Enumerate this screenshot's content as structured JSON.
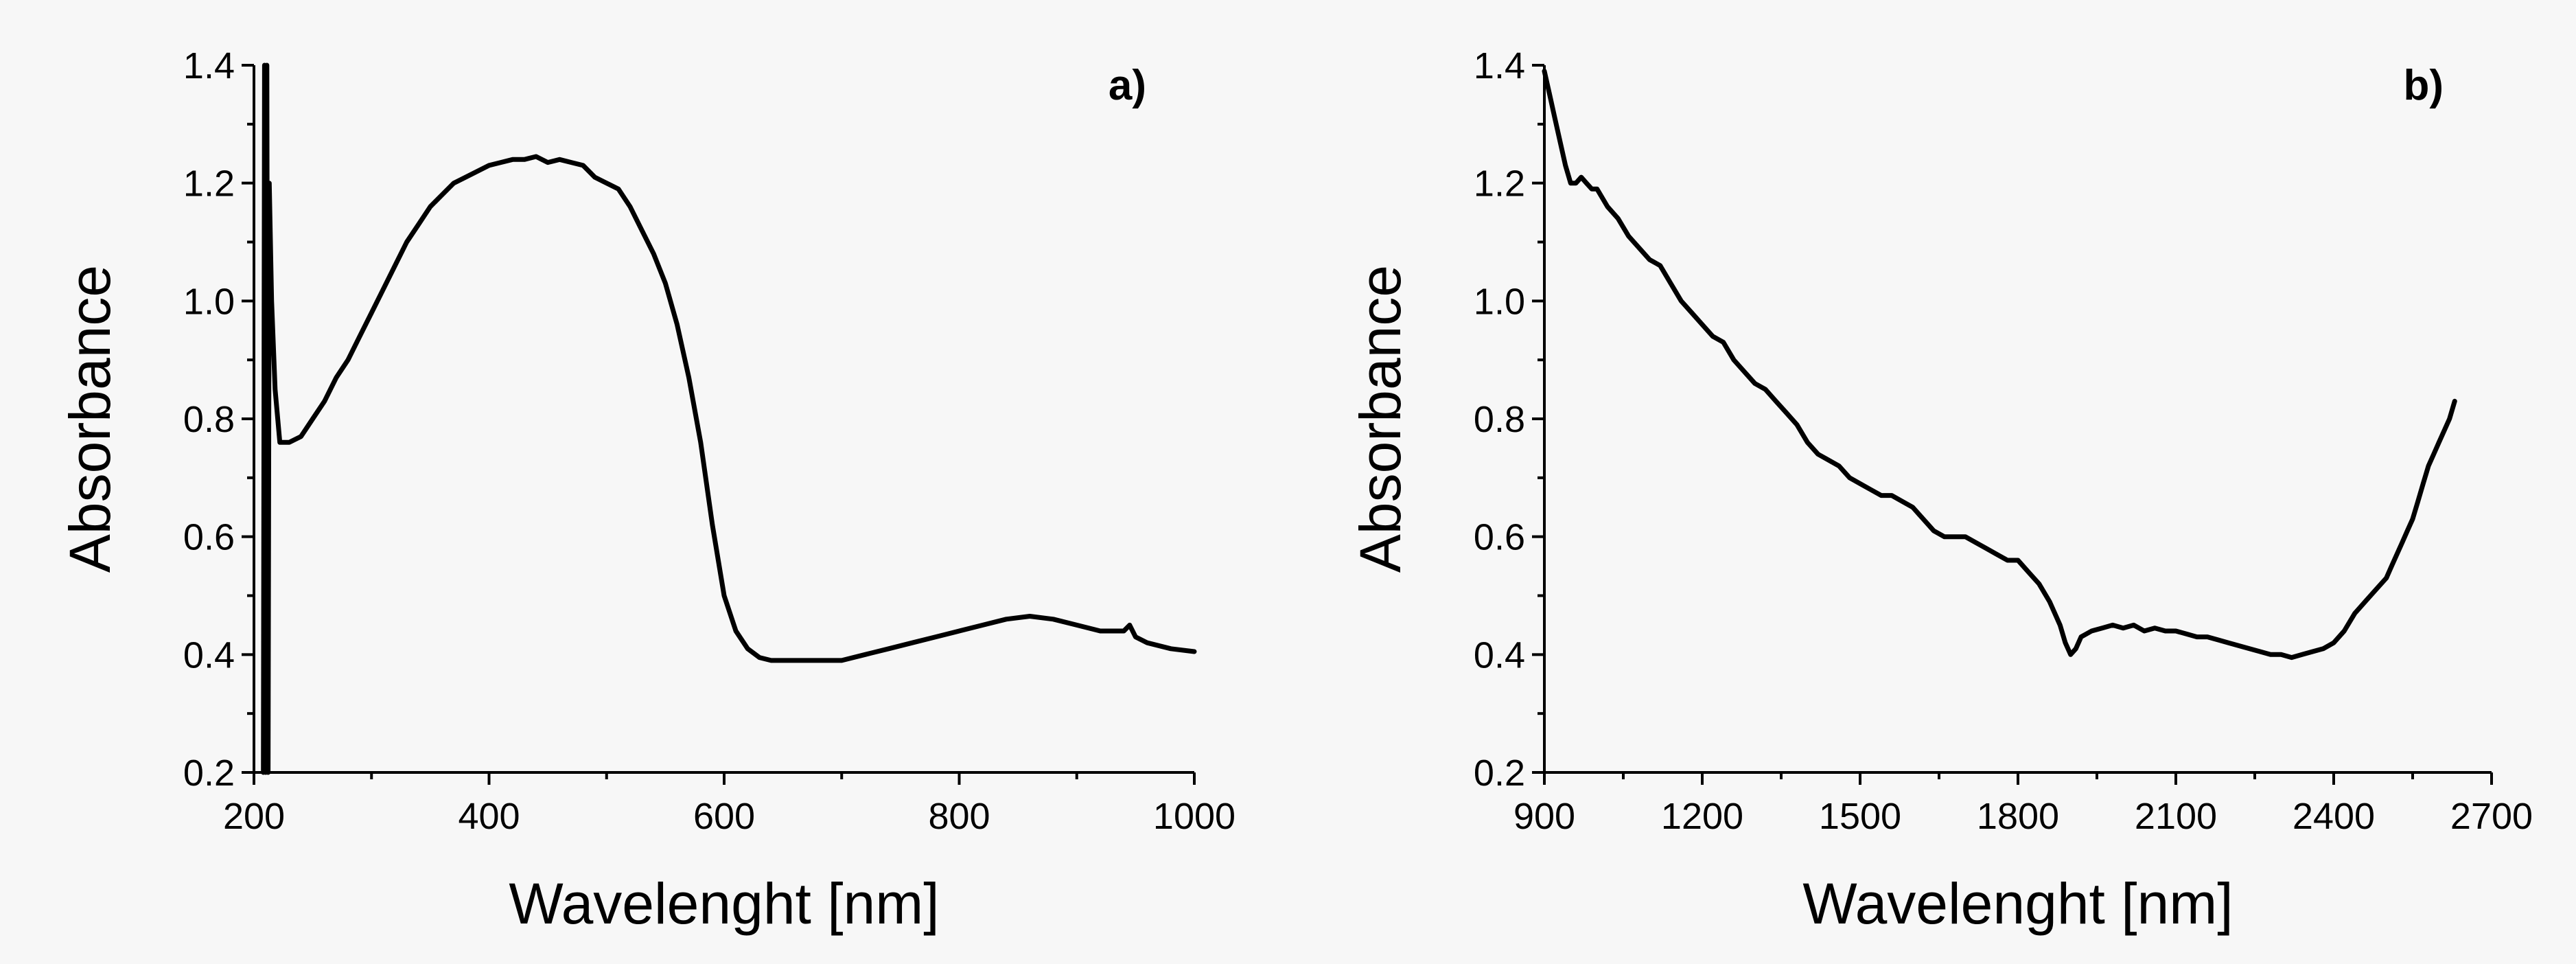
{
  "chart_data": [
    {
      "type": "line",
      "panel_label": "a)",
      "xlabel": "Wavelenght [nm]",
      "ylabel": "Absorbance",
      "xlim": [
        200,
        1000
      ],
      "ylim": [
        0.2,
        1.4
      ],
      "xticks": [
        200,
        400,
        600,
        800,
        1000
      ],
      "xtick_labels": [
        "200",
        "400",
        "600",
        "800",
        "1000"
      ],
      "yticks": [
        0.2,
        0.4,
        0.6,
        0.8,
        1.0,
        1.2,
        1.4
      ],
      "ytick_labels": [
        "0.2",
        "0.4",
        "0.6",
        "0.8",
        "1.0",
        "1.2",
        "1.4"
      ],
      "series": [
        {
          "name": "absorbance",
          "x": [
            208,
            209,
            210,
            211,
            212,
            213,
            215,
            218,
            222,
            230,
            240,
            250,
            260,
            270,
            280,
            290,
            300,
            310,
            320,
            330,
            340,
            350,
            360,
            370,
            380,
            390,
            400,
            410,
            420,
            430,
            440,
            450,
            460,
            470,
            480,
            490,
            500,
            510,
            520,
            530,
            540,
            550,
            560,
            570,
            580,
            590,
            600,
            610,
            620,
            630,
            640,
            650,
            660,
            670,
            680,
            690,
            700,
            720,
            740,
            760,
            780,
            800,
            820,
            840,
            860,
            880,
            900,
            920,
            940,
            945,
            950,
            960,
            980,
            1000
          ],
          "y": [
            0.2,
            1.4,
            0.2,
            1.4,
            0.2,
            1.2,
            1.0,
            0.85,
            0.76,
            0.76,
            0.77,
            0.8,
            0.83,
            0.87,
            0.9,
            0.94,
            0.98,
            1.02,
            1.06,
            1.1,
            1.13,
            1.16,
            1.18,
            1.2,
            1.21,
            1.22,
            1.23,
            1.235,
            1.24,
            1.24,
            1.245,
            1.235,
            1.24,
            1.235,
            1.23,
            1.21,
            1.2,
            1.19,
            1.16,
            1.12,
            1.08,
            1.03,
            0.96,
            0.87,
            0.76,
            0.62,
            0.5,
            0.44,
            0.41,
            0.395,
            0.39,
            0.39,
            0.39,
            0.39,
            0.39,
            0.39,
            0.39,
            0.4,
            0.41,
            0.42,
            0.43,
            0.44,
            0.45,
            0.46,
            0.465,
            0.46,
            0.45,
            0.44,
            0.44,
            0.45,
            0.43,
            0.42,
            0.41,
            0.405
          ]
        }
      ]
    },
    {
      "type": "line",
      "panel_label": "b)",
      "xlabel": "Wavelenght [nm]",
      "ylabel": "Absorbance",
      "xlim": [
        900,
        2700
      ],
      "ylim": [
        0.2,
        1.4
      ],
      "xticks": [
        900,
        1200,
        1500,
        1800,
        2100,
        2400,
        2700
      ],
      "xtick_labels": [
        "900",
        "1200",
        "1500",
        "1800",
        "2100",
        "2400",
        "2700"
      ],
      "yticks": [
        0.2,
        0.4,
        0.6,
        0.8,
        1.0,
        1.2,
        1.4
      ],
      "ytick_labels": [
        "0.2",
        "0.4",
        "0.6",
        "0.8",
        "1.0",
        "1.2",
        "1.4"
      ],
      "series": [
        {
          "name": "absorbance",
          "x": [
            900,
            910,
            920,
            930,
            940,
            950,
            960,
            970,
            980,
            990,
            1000,
            1020,
            1040,
            1060,
            1080,
            1100,
            1120,
            1140,
            1160,
            1180,
            1200,
            1220,
            1240,
            1260,
            1280,
            1300,
            1320,
            1340,
            1360,
            1380,
            1400,
            1420,
            1440,
            1460,
            1480,
            1500,
            1520,
            1540,
            1560,
            1580,
            1600,
            1620,
            1640,
            1660,
            1680,
            1700,
            1720,
            1740,
            1760,
            1780,
            1800,
            1820,
            1840,
            1860,
            1870,
            1880,
            1890,
            1900,
            1910,
            1920,
            1940,
            1960,
            1980,
            2000,
            2020,
            2040,
            2060,
            2080,
            2100,
            2120,
            2140,
            2160,
            2180,
            2200,
            2220,
            2240,
            2260,
            2280,
            2300,
            2320,
            2340,
            2360,
            2380,
            2400,
            2420,
            2440,
            2460,
            2480,
            2500,
            2510,
            2520,
            2530,
            2540,
            2550,
            2560,
            2570,
            2580,
            2590,
            2600,
            2610,
            2620,
            2630
          ],
          "y": [
            1.39,
            1.35,
            1.31,
            1.27,
            1.23,
            1.2,
            1.2,
            1.21,
            1.2,
            1.19,
            1.19,
            1.16,
            1.14,
            1.11,
            1.09,
            1.07,
            1.06,
            1.03,
            1.0,
            0.98,
            0.96,
            0.94,
            0.93,
            0.9,
            0.88,
            0.86,
            0.85,
            0.83,
            0.81,
            0.79,
            0.76,
            0.74,
            0.73,
            0.72,
            0.7,
            0.69,
            0.68,
            0.67,
            0.67,
            0.66,
            0.65,
            0.63,
            0.61,
            0.6,
            0.6,
            0.6,
            0.59,
            0.58,
            0.57,
            0.56,
            0.56,
            0.54,
            0.52,
            0.49,
            0.47,
            0.45,
            0.42,
            0.4,
            0.41,
            0.43,
            0.44,
            0.445,
            0.45,
            0.445,
            0.45,
            0.44,
            0.445,
            0.44,
            0.44,
            0.435,
            0.43,
            0.43,
            0.425,
            0.42,
            0.415,
            0.41,
            0.405,
            0.4,
            0.4,
            0.395,
            0.4,
            0.405,
            0.41,
            0.42,
            0.44,
            0.47,
            0.49,
            0.51,
            0.53,
            0.55,
            0.57,
            0.59,
            0.61,
            0.63,
            0.66,
            0.69,
            0.72,
            0.74,
            0.76,
            0.78,
            0.8,
            0.83
          ]
        }
      ]
    }
  ]
}
